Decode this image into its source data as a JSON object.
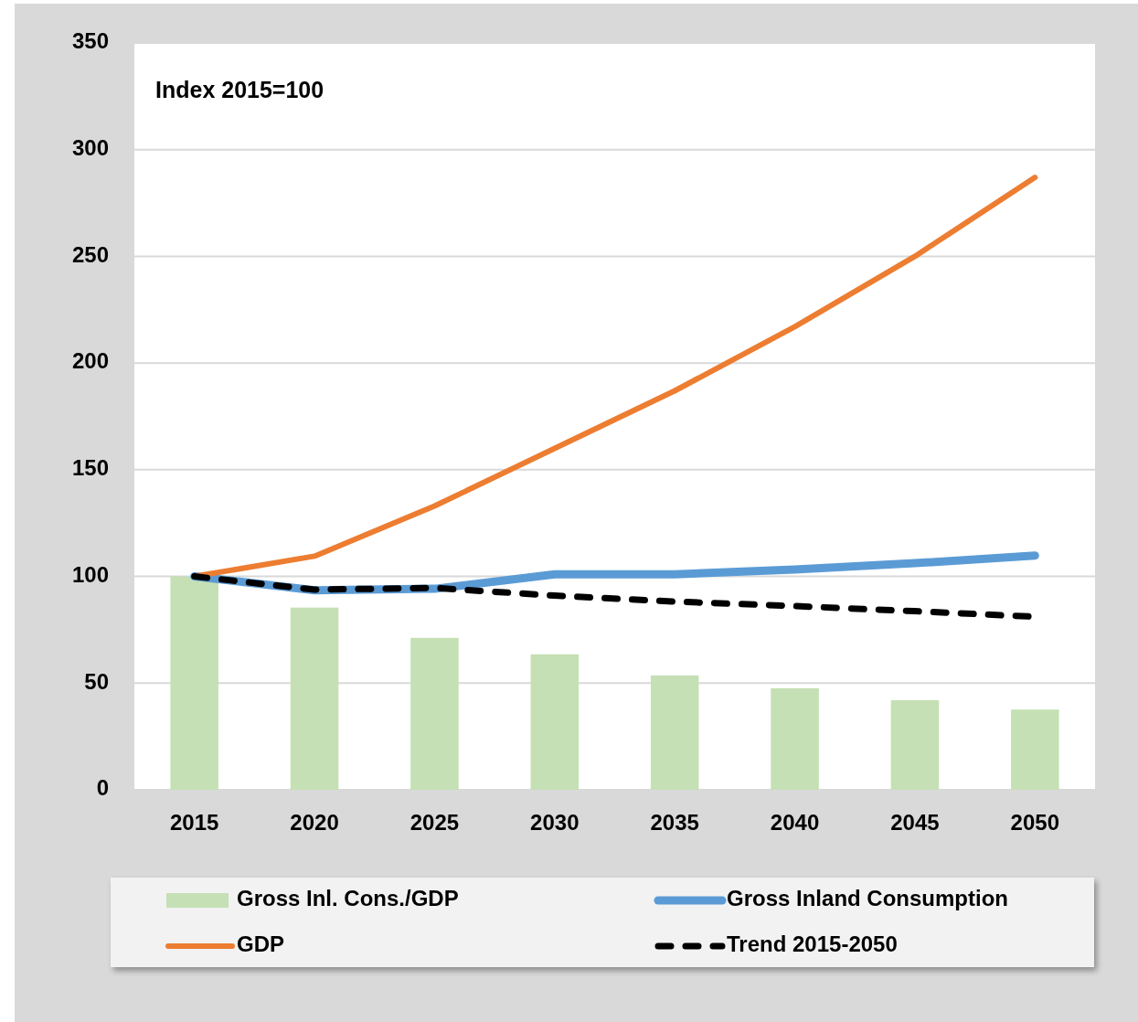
{
  "chart_data": {
    "type": "bar",
    "categories": [
      "2015",
      "2020",
      "2025",
      "2030",
      "2035",
      "2040",
      "2045",
      "2050"
    ],
    "series": [
      {
        "name": "Gross Inl. Cons./GDP",
        "color": "#c5e0b4",
        "values": [
          100,
          85.4,
          71.2,
          63.5,
          53.6,
          47.6,
          42,
          37.6
        ]
      },
      {
        "name": "Gross Inland Consumption",
        "type": "line",
        "color": "#5b9bd5",
        "values": [
          100,
          93.5,
          94.2,
          101,
          101,
          103.2,
          106.2,
          109.8
        ]
      },
      {
        "name": "GDP",
        "type": "line",
        "color": "#ed7d31",
        "values": [
          100,
          109.5,
          133,
          160,
          187,
          217,
          250,
          287
        ]
      },
      {
        "name": "Trend 2015-2050",
        "type": "line",
        "color": "#000000",
        "line_style": "dashed",
        "values": [
          100,
          93.8,
          94.6,
          91,
          88.2,
          86.1,
          83.7,
          81.1
        ]
      }
    ],
    "ylim": [
      0,
      350
    ],
    "yticks": [
      0,
      50,
      100,
      150,
      200,
      250,
      300,
      350
    ],
    "grid": "y",
    "legend": "bottom",
    "annotations": [
      "Index 2015=100"
    ]
  }
}
